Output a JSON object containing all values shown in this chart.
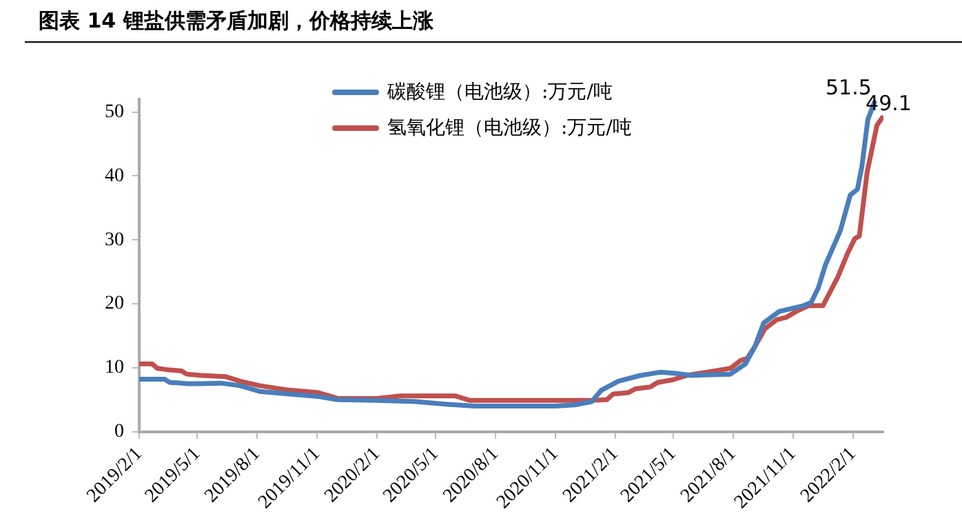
{
  "chart_data": {
    "type": "line",
    "title": "图表 14 锂盐供需矛盾加剧，价格持续上涨",
    "xlim": [
      "2019-02-01",
      "2022-03-20"
    ],
    "xticks": [
      {
        "value": "2019-02-01",
        "label": "2019/2/1"
      },
      {
        "value": "2019-05-01",
        "label": "2019/5/1"
      },
      {
        "value": "2019-08-01",
        "label": "2019/8/1"
      },
      {
        "value": "2019-11-01",
        "label": "2019/11/1"
      },
      {
        "value": "2020-02-01",
        "label": "2020/2/1"
      },
      {
        "value": "2020-05-01",
        "label": "2020/5/1"
      },
      {
        "value": "2020-08-01",
        "label": "2020/8/1"
      },
      {
        "value": "2020-11-01",
        "label": "2020/11/1"
      },
      {
        "value": "2021-02-01",
        "label": "2021/2/1"
      },
      {
        "value": "2021-05-01",
        "label": "2021/5/1"
      },
      {
        "value": "2021-08-01",
        "label": "2021/8/1"
      },
      {
        "value": "2021-11-01",
        "label": "2021/11/1"
      },
      {
        "value": "2022-02-01",
        "label": "2022/2/1"
      }
    ],
    "ylim": [
      0,
      52
    ],
    "yticks": [
      0,
      10,
      20,
      30,
      40,
      50
    ],
    "grid": false,
    "legend": "top",
    "marker": "none",
    "line_style": "solid",
    "series": [
      {
        "name": "碳酸锂（电池级）:万元/吨",
        "color": "#4a7ebb",
        "x": [
          "2019-02-01",
          "2019-03-12",
          "2019-03-20",
          "2019-04-07",
          "2019-04-15",
          "2019-05-07",
          "2019-06-06",
          "2019-07-06",
          "2019-08-05",
          "2019-09-19",
          "2019-11-03",
          "2019-12-03",
          "2020-02-01",
          "2020-04-01",
          "2020-05-16",
          "2020-06-30",
          "2020-08-13",
          "2020-11-01",
          "2020-12-01",
          "2020-12-27",
          "2021-01-11",
          "2021-02-06",
          "2021-03-12",
          "2021-04-11",
          "2021-05-07",
          "2021-05-29",
          "2021-07-28",
          "2021-08-20",
          "2021-09-04",
          "2021-09-17",
          "2021-10-11",
          "2021-11-17",
          "2021-11-29",
          "2021-12-10",
          "2021-12-21",
          "2022-01-13",
          "2022-01-28",
          "2022-02-08",
          "2022-02-15",
          "2022-02-24",
          "2022-03-06"
        ],
        "values": [
          8.2,
          8.2,
          7.7,
          7.6,
          7.5,
          7.5,
          7.6,
          7.2,
          6.3,
          5.9,
          5.5,
          5.0,
          4.9,
          4.7,
          4.3,
          4.0,
          4.0,
          4.0,
          4.2,
          4.7,
          6.5,
          7.9,
          8.8,
          9.3,
          9.1,
          8.8,
          9.0,
          10.6,
          13.4,
          17.0,
          18.8,
          19.7,
          20.2,
          22.5,
          26.1,
          31.5,
          37.0,
          37.9,
          41.5,
          48.8,
          51.5
        ],
        "value_labels": [
          null,
          null,
          null,
          null,
          null,
          null,
          null,
          null,
          null,
          null,
          null,
          null,
          null,
          null,
          null,
          null,
          null,
          null,
          null,
          null,
          null,
          null,
          null,
          null,
          null,
          null,
          null,
          null,
          null,
          null,
          null,
          null,
          null,
          null,
          null,
          null,
          null,
          null,
          null,
          null,
          "51.5"
        ]
      },
      {
        "name": "氢氧化锂（电池级）:万元/吨",
        "color": "#c0504d",
        "x": [
          "2019-02-01",
          "2019-02-21",
          "2019-03-01",
          "2019-03-16",
          "2019-04-07",
          "2019-04-15",
          "2019-05-07",
          "2019-06-14",
          "2019-07-06",
          "2019-08-05",
          "2019-09-19",
          "2019-11-03",
          "2019-12-03",
          "2020-02-01",
          "2020-03-09",
          "2020-05-31",
          "2020-06-22",
          "2020-08-13",
          "2020-12-27",
          "2021-01-19",
          "2021-01-29",
          "2021-02-21",
          "2021-03-04",
          "2021-03-27",
          "2021-04-07",
          "2021-04-30",
          "2021-05-22",
          "2021-06-21",
          "2021-07-28",
          "2021-08-12",
          "2021-08-23",
          "2021-09-04",
          "2021-09-19",
          "2021-10-07",
          "2021-10-22",
          "2021-11-06",
          "2021-11-25",
          "2021-12-17",
          "2022-01-09",
          "2022-01-24",
          "2022-02-04",
          "2022-02-11",
          "2022-02-23",
          "2022-03-10",
          "2022-03-18"
        ],
        "values": [
          10.6,
          10.6,
          9.9,
          9.7,
          9.5,
          9.0,
          8.8,
          8.6,
          7.9,
          7.2,
          6.5,
          6.1,
          5.2,
          5.2,
          5.6,
          5.6,
          4.9,
          4.9,
          4.9,
          5.0,
          5.9,
          6.1,
          6.7,
          7.0,
          7.7,
          8.1,
          8.8,
          9.3,
          9.9,
          11.1,
          11.5,
          13.4,
          16.1,
          17.5,
          17.9,
          18.8,
          19.7,
          19.7,
          24.2,
          27.9,
          30.2,
          30.6,
          40.6,
          47.9,
          49.1
        ],
        "value_labels": [
          null,
          null,
          null,
          null,
          null,
          null,
          null,
          null,
          null,
          null,
          null,
          null,
          null,
          null,
          null,
          null,
          null,
          null,
          null,
          null,
          null,
          null,
          null,
          null,
          null,
          null,
          null,
          null,
          null,
          null,
          null,
          null,
          null,
          null,
          null,
          null,
          null,
          null,
          null,
          null,
          null,
          null,
          null,
          null,
          "49.1"
        ]
      }
    ]
  }
}
